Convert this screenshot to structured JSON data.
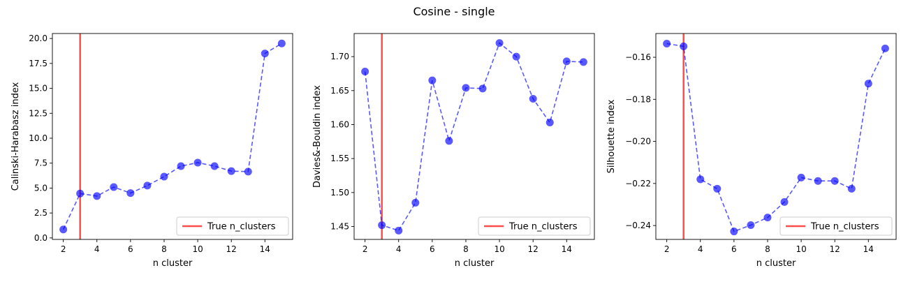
{
  "figure": {
    "title": "Cosine - single"
  },
  "chart_data": [
    {
      "type": "line",
      "xlabel": "n cluster",
      "ylabel": "Calinski-Harabasz index",
      "x": [
        2,
        3,
        4,
        5,
        6,
        7,
        8,
        9,
        10,
        11,
        12,
        13,
        14,
        15
      ],
      "series": [
        {
          "values": [
            0.85,
            4.45,
            4.2,
            5.1,
            4.5,
            5.25,
            6.15,
            7.2,
            7.55,
            7.2,
            6.7,
            6.65,
            18.5,
            19.5
          ],
          "color": "#0000ff"
        }
      ],
      "true_n_clusters": 3,
      "legend": {
        "label": "True n_clusters",
        "color": "#ff0000",
        "position": "lower-right"
      },
      "xlim": [
        1.35,
        15.65
      ],
      "ylim": [
        -0.15,
        20.5
      ],
      "xticks": [
        2,
        4,
        6,
        8,
        10,
        12,
        14
      ],
      "yticks": [
        0.0,
        2.5,
        5.0,
        7.5,
        10.0,
        12.5,
        15.0,
        17.5,
        20.0
      ],
      "ytick_labels": [
        "0.0",
        "2.5",
        "5.0",
        "7.5",
        "10.0",
        "12.5",
        "15.0",
        "17.5",
        "20.0"
      ],
      "grid": false
    },
    {
      "type": "line",
      "xlabel": "n cluster",
      "ylabel": "Davies&-Bouldin index",
      "x": [
        2,
        3,
        4,
        5,
        6,
        7,
        8,
        9,
        10,
        11,
        12,
        13,
        14,
        15
      ],
      "series": [
        {
          "values": [
            1.678,
            1.452,
            1.444,
            1.485,
            1.665,
            1.576,
            1.654,
            1.653,
            1.72,
            1.7,
            1.638,
            1.603,
            1.693,
            1.692
          ],
          "color": "#0000ff"
        }
      ],
      "true_n_clusters": 3,
      "legend": {
        "label": "True n_clusters",
        "color": "#ff0000",
        "position": "lower-right"
      },
      "xlim": [
        1.35,
        15.65
      ],
      "ylim": [
        1.431,
        1.734
      ],
      "xticks": [
        2,
        4,
        6,
        8,
        10,
        12,
        14
      ],
      "yticks": [
        1.45,
        1.5,
        1.55,
        1.6,
        1.65,
        1.7
      ],
      "ytick_labels": [
        "1.45",
        "1.50",
        "1.55",
        "1.60",
        "1.65",
        "1.70"
      ],
      "grid": false
    },
    {
      "type": "line",
      "xlabel": "n cluster",
      "ylabel": "Silhouette index",
      "x": [
        2,
        3,
        4,
        5,
        6,
        7,
        8,
        9,
        10,
        11,
        12,
        13,
        14,
        15
      ],
      "series": [
        {
          "values": [
            -0.1535,
            -0.1548,
            -0.218,
            -0.2225,
            -0.2428,
            -0.2398,
            -0.2362,
            -0.2288,
            -0.2172,
            -0.2188,
            -0.2188,
            -0.2225,
            -0.1725,
            -0.1558
          ],
          "color": "#0000ff"
        }
      ],
      "true_n_clusters": 3,
      "legend": {
        "label": "True n_clusters",
        "color": "#ff0000",
        "position": "lower-right"
      },
      "xlim": [
        1.35,
        15.65
      ],
      "ylim": [
        -0.2466,
        -0.1487
      ],
      "xticks": [
        2,
        4,
        6,
        8,
        10,
        12,
        14
      ],
      "yticks": [
        -0.24,
        -0.22,
        -0.2,
        -0.18,
        -0.16
      ],
      "ytick_labels": [
        "−0.24",
        "−0.22",
        "−0.20",
        "−0.18",
        "−0.16"
      ],
      "grid": false
    }
  ]
}
